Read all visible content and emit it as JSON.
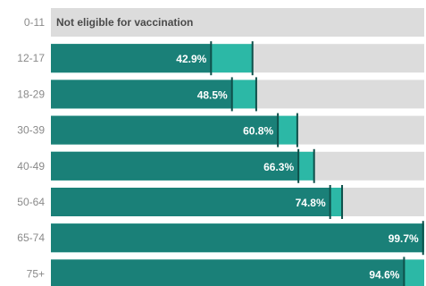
{
  "chart_data": {
    "type": "bar",
    "orientation": "horizontal",
    "stacked_overlay": true,
    "xlim": [
      0,
      100
    ],
    "categories": [
      "0-11",
      "12-17",
      "18-29",
      "30-39",
      "40-49",
      "50-64",
      "65-74",
      "75+"
    ],
    "not_eligible_label": "Not eligible for vaccination",
    "series": [
      {
        "key": "fully",
        "color": "#1a8078",
        "values": [
          null,
          42.9,
          48.5,
          60.8,
          66.3,
          74.8,
          99.7,
          94.6
        ],
        "labels": [
          "",
          "42.9%",
          "48.5%",
          "60.8%",
          "66.3%",
          "74.8%",
          "99.7%",
          "94.6%"
        ]
      },
      {
        "key": "at_least_one",
        "color": "#2cb8a6",
        "values": [
          null,
          54.0,
          55.0,
          66.0,
          70.5,
          78.0,
          100,
          100
        ]
      }
    ],
    "colors": {
      "track": "#dcdcdc",
      "marker": "#0e4f4a",
      "label_text": "#ffffff",
      "category_text": "#8a8a8a",
      "ineligible_text": "#4a4a4a"
    }
  }
}
